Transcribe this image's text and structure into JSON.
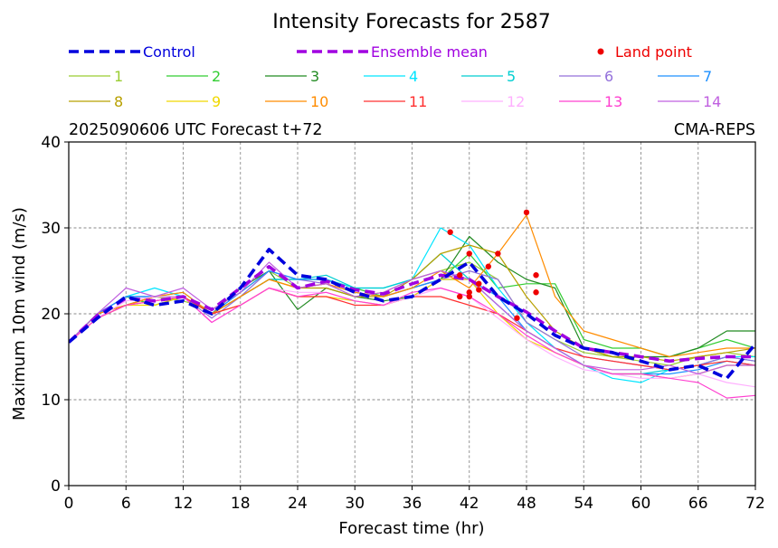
{
  "chart_data": {
    "type": "line",
    "title": "Intensity Forecasts for 2587",
    "subtitle_left": "2025090606 UTC Forecast t+72",
    "subtitle_right": "CMA-REPS",
    "xlabel": "Forecast time (hr)",
    "ylabel": "Maximum 10m wind (m/s)",
    "xlim": [
      0,
      72
    ],
    "ylim": [
      0,
      40
    ],
    "xticks": [
      0,
      6,
      12,
      18,
      24,
      30,
      36,
      42,
      48,
      54,
      60,
      66,
      72
    ],
    "yticks": [
      0,
      10,
      20,
      30,
      40
    ],
    "grid": true,
    "legend_position": "top",
    "x": [
      0,
      3,
      6,
      9,
      12,
      15,
      18,
      21,
      24,
      27,
      30,
      33,
      36,
      39,
      42,
      45,
      48,
      51,
      54,
      57,
      60,
      63,
      66,
      69,
      72
    ],
    "series": [
      {
        "name": "Control",
        "color": "#0000dd",
        "style": "dashed",
        "bold": true,
        "values": [
          16.7,
          19.5,
          22,
          21,
          21.5,
          20,
          23,
          27.5,
          24.5,
          24,
          22.5,
          21.5,
          22,
          24,
          26,
          22,
          20,
          17.5,
          16,
          15.5,
          14.5,
          13.5,
          14,
          12.5,
          16.5
        ]
      },
      {
        "name": "Ensemble mean",
        "color": "#a000e0",
        "style": "dashed",
        "bold": true,
        "values": [
          16.7,
          19.8,
          21.8,
          21.5,
          22,
          20.5,
          23,
          25.5,
          23,
          23.8,
          22.8,
          22.3,
          23.5,
          24.5,
          24,
          22,
          20.2,
          18,
          16,
          15.5,
          15,
          14.5,
          14.8,
          15,
          15
        ]
      },
      {
        "name": "1",
        "color": "#9acd32",
        "values": [
          16.7,
          19.5,
          21,
          22,
          21.5,
          20.5,
          22.5,
          25,
          23,
          23.5,
          22,
          22.5,
          24,
          25,
          26,
          24,
          19,
          17,
          15.5,
          15,
          14.5,
          14,
          15,
          15.5,
          15
        ]
      },
      {
        "name": "2",
        "color": "#32cd32",
        "values": [
          16.7,
          20,
          22,
          21,
          22,
          20,
          22,
          24,
          24,
          24,
          23,
          22,
          23,
          24,
          27,
          23,
          23.5,
          23.5,
          17,
          16,
          16,
          15,
          16,
          17,
          16
        ]
      },
      {
        "name": "3",
        "color": "#228b22",
        "values": [
          16.7,
          20,
          21,
          22,
          22,
          20,
          23,
          25,
          20.5,
          23,
          22,
          21.5,
          22,
          24,
          29,
          26,
          24,
          23,
          16,
          15,
          15,
          15,
          16,
          18,
          18
        ]
      },
      {
        "name": "4",
        "color": "#00e5ff",
        "values": [
          16.7,
          20,
          22,
          23,
          22,
          20,
          22,
          24,
          24,
          24,
          23,
          23,
          24,
          30,
          28,
          23,
          19,
          16,
          14,
          12.5,
          12,
          13.5,
          14,
          15,
          15
        ]
      },
      {
        "name": "5",
        "color": "#00ced1",
        "values": [
          16.7,
          20,
          22,
          22,
          22.5,
          20,
          22,
          24,
          24,
          24.5,
          23,
          23,
          24,
          27,
          24,
          21,
          18,
          16,
          14,
          13,
          13,
          13.5,
          14,
          15,
          14.5
        ]
      },
      {
        "name": "6",
        "color": "#9370db",
        "values": [
          16.7,
          20,
          22,
          22,
          22,
          19.5,
          22,
          25,
          24,
          23.5,
          22.5,
          22,
          23,
          24,
          25,
          24,
          19,
          17,
          15,
          14.5,
          14,
          13.5,
          14,
          15,
          14.5
        ]
      },
      {
        "name": "7",
        "color": "#1e90ff",
        "values": [
          16.7,
          20,
          22,
          22,
          22,
          20,
          22.5,
          25,
          24,
          24,
          22.5,
          22,
          23,
          24,
          24,
          22,
          18,
          16,
          14,
          13,
          13,
          13,
          13.5,
          14.5,
          14
        ]
      },
      {
        "name": "8",
        "color": "#b8a000",
        "values": [
          16.7,
          19.5,
          21,
          22,
          22,
          20,
          22,
          24,
          23,
          23,
          22,
          22,
          24,
          27,
          28,
          27,
          22,
          18,
          16,
          15,
          15,
          14.5,
          15,
          15.5,
          16
        ]
      },
      {
        "name": "9",
        "color": "#f0d800",
        "values": [
          16.7,
          19.5,
          21,
          21,
          22,
          20,
          21,
          23,
          22,
          22,
          21.5,
          21,
          22,
          24,
          24,
          20,
          17,
          15.5,
          14,
          13,
          13,
          12.5,
          13,
          14,
          14
        ]
      },
      {
        "name": "10",
        "color": "#ff8c00",
        "values": [
          16.7,
          20,
          21,
          22,
          22.5,
          20,
          22,
          24,
          23,
          23.5,
          22.5,
          22,
          23,
          25,
          23,
          27,
          31.5,
          22,
          18,
          17,
          16,
          15,
          15.5,
          16,
          16
        ]
      },
      {
        "name": "11",
        "color": "#ff3030",
        "values": [
          16.7,
          19.5,
          21,
          21.5,
          22,
          20,
          21,
          23,
          22,
          22,
          21,
          21,
          22,
          22,
          21,
          20,
          18,
          16,
          15,
          14.5,
          14,
          13.5,
          14,
          14.5,
          14
        ]
      },
      {
        "name": "12",
        "color": "#ffb0ff",
        "values": [
          16.7,
          19.5,
          21.5,
          22,
          22,
          19,
          21,
          23,
          22.5,
          22.5,
          21.5,
          21,
          22,
          23,
          22,
          19.5,
          17,
          15,
          13.5,
          13,
          12.5,
          12.5,
          13,
          12,
          11.5
        ]
      },
      {
        "name": "13",
        "color": "#ff40d0",
        "values": [
          16.7,
          19.5,
          21,
          21.5,
          22,
          19,
          21,
          23,
          22,
          22.5,
          21.5,
          21,
          22.5,
          23,
          22,
          20,
          17.5,
          15.5,
          14,
          13,
          13,
          12.5,
          12,
          10.2,
          10.5
        ]
      },
      {
        "name": "14",
        "color": "#c060e0",
        "values": [
          16.7,
          20,
          23,
          22,
          23,
          20.5,
          22.5,
          26,
          23,
          23.5,
          22,
          22.5,
          24,
          25,
          24,
          21,
          18,
          16,
          14,
          13.5,
          13.5,
          14,
          13,
          14,
          14
        ]
      }
    ],
    "land_points": {
      "name": "Land point",
      "color": "#ee0000",
      "points": [
        [
          40,
          29.5
        ],
        [
          41,
          24.5
        ],
        [
          41,
          22
        ],
        [
          42,
          27
        ],
        [
          42,
          22.5
        ],
        [
          42,
          22
        ],
        [
          43,
          23.5
        ],
        [
          43,
          22.8
        ],
        [
          44,
          25.5
        ],
        [
          45,
          27
        ],
        [
          47,
          19.5
        ],
        [
          48,
          31.8
        ],
        [
          49,
          24.5
        ],
        [
          49,
          22.5
        ]
      ]
    }
  }
}
